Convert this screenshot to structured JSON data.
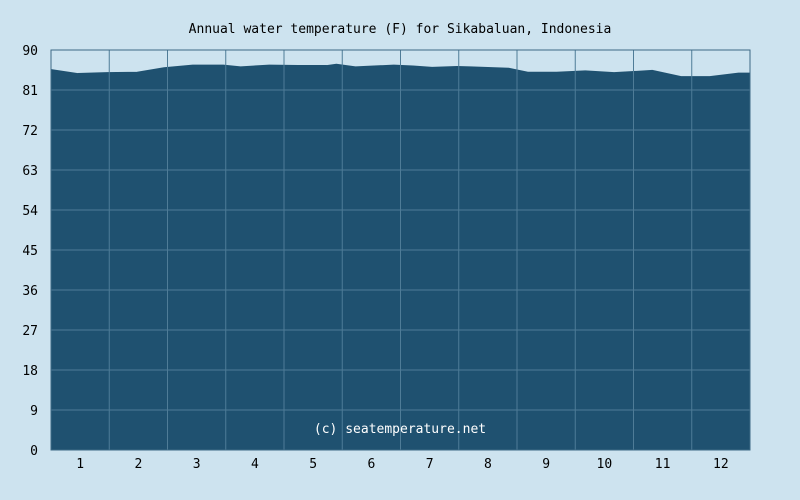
{
  "colors": {
    "background": "#cde3ef",
    "area_fill": "#1f5170",
    "grid": "#4f7c97",
    "plot_border": "#3d6a86",
    "text": "#000000",
    "watermark": "#ffffff"
  },
  "chart_data": {
    "type": "area",
    "title": "Annual water temperature (F) for Sikabaluan, Indonesia",
    "watermark": "(c) seatemperature.net",
    "xlabel": "",
    "ylabel": "",
    "ylim": [
      0,
      90
    ],
    "yticks": [
      0,
      9,
      18,
      27,
      36,
      45,
      54,
      63,
      72,
      81,
      90
    ],
    "x_categories": [
      "1",
      "2",
      "3",
      "4",
      "5",
      "6",
      "7",
      "8",
      "9",
      "10",
      "11",
      "12"
    ],
    "grid": true,
    "x": [
      1,
      15,
      30,
      46,
      60,
      75,
      91,
      100,
      115,
      130,
      145,
      150,
      160,
      180,
      190,
      200,
      213,
      220,
      240,
      250,
      265,
      280,
      295,
      315,
      330,
      345,
      360
    ],
    "values": [
      85.6,
      84.7,
      84.9,
      85.0,
      86.0,
      86.6,
      86.6,
      86.2,
      86.6,
      86.5,
      86.5,
      86.8,
      86.2,
      86.6,
      86.4,
      86.1,
      86.3,
      86.2,
      85.9,
      85.0,
      85.0,
      85.3,
      84.9,
      85.4,
      84.0,
      84.0,
      84.8
    ],
    "x_domain": [
      1,
      366
    ]
  }
}
